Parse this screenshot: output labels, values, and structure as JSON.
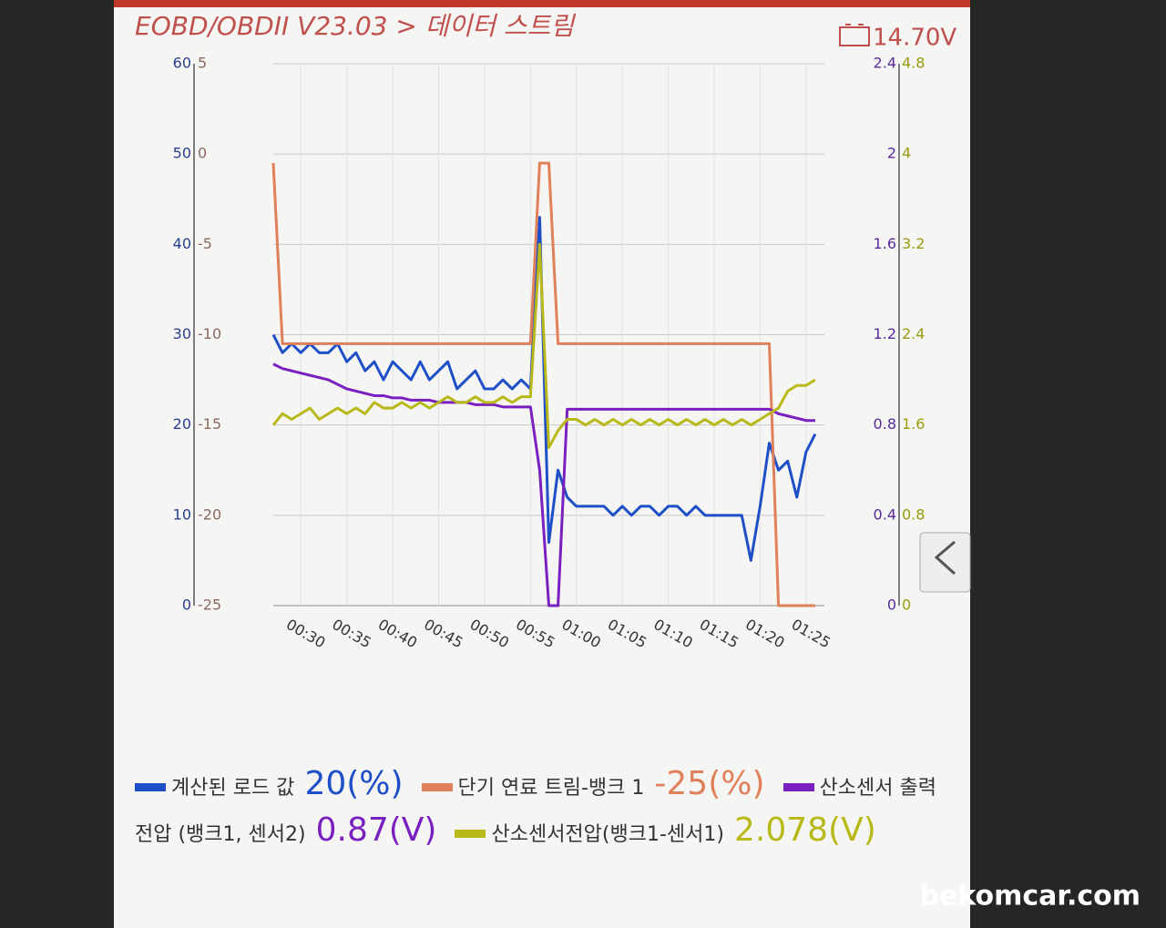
{
  "header": {
    "title": "EOBD/OBDII V23.03 > 데이터 스트림",
    "battery": "14.70V"
  },
  "chart_data": {
    "type": "line",
    "x": [
      27,
      28,
      29,
      30,
      31,
      32,
      33,
      34,
      35,
      36,
      37,
      38,
      39,
      40,
      41,
      42,
      43,
      44,
      45,
      46,
      47,
      48,
      49,
      50,
      51,
      52,
      53,
      54,
      55,
      56,
      57,
      58,
      59,
      60,
      61,
      62,
      63,
      64,
      65,
      66,
      67,
      68,
      69,
      70,
      71,
      72,
      73,
      74,
      75,
      76,
      77,
      78,
      79,
      80,
      81,
      82,
      83,
      84,
      85,
      86
    ],
    "xlim": [
      27,
      87
    ],
    "xticks": [
      {
        "value": 30,
        "label": "00:30"
      },
      {
        "value": 35,
        "label": "00:35"
      },
      {
        "value": 40,
        "label": "00:40"
      },
      {
        "value": 45,
        "label": "00:45"
      },
      {
        "value": 50,
        "label": "00:50"
      },
      {
        "value": 55,
        "label": "00:55"
      },
      {
        "value": 60,
        "label": "01:00"
      },
      {
        "value": 65,
        "label": "01:05"
      },
      {
        "value": 70,
        "label": "01:10"
      },
      {
        "value": 75,
        "label": "01:15"
      },
      {
        "value": 80,
        "label": "01:20"
      },
      {
        "value": 85,
        "label": "01:25"
      }
    ],
    "ylim": [
      0,
      60
    ],
    "yticks": [
      0,
      10,
      20,
      30,
      40,
      50,
      60
    ],
    "y2lim": [
      -25,
      5
    ],
    "y2ticks": [
      -25,
      -20,
      -15,
      -10,
      -5,
      0,
      5
    ],
    "y3lim": [
      0,
      2.4
    ],
    "y3ticks": [
      0,
      0.4,
      0.8,
      1.2,
      1.6,
      2,
      2.4
    ],
    "y4lim": [
      0,
      4.8
    ],
    "y4ticks": [
      0,
      0.8,
      1.6,
      2.4,
      3.2,
      4,
      4.8
    ],
    "grid": true,
    "series": [
      {
        "name": "계산된 로드 값",
        "reading": "20(%)",
        "color": "#1f4fc8",
        "axis": "y",
        "values": [
          30,
          28,
          29,
          28,
          29,
          28,
          28,
          29,
          27,
          28,
          26,
          27,
          25,
          27,
          26,
          25,
          27,
          25,
          26,
          27,
          24,
          25,
          26,
          24,
          24,
          25,
          24,
          25,
          24,
          43,
          7,
          15,
          12,
          11,
          11,
          11,
          11,
          10,
          11,
          10,
          11,
          11,
          10,
          11,
          11,
          10,
          11,
          10,
          10,
          10,
          10,
          10,
          5,
          11,
          18,
          15,
          16,
          12,
          17,
          19
        ]
      },
      {
        "name": "단기 연료 트림-뱅크 1",
        "reading": "-25(%)",
        "color": "#e0805a",
        "axis": "y2",
        "values": [
          -0.5,
          -10.5,
          -10.5,
          -10.5,
          -10.5,
          -10.5,
          -10.5,
          -10.5,
          -10.5,
          -10.5,
          -10.5,
          -10.5,
          -10.5,
          -10.5,
          -10.5,
          -10.5,
          -10.5,
          -10.5,
          -10.5,
          -10.5,
          -10.5,
          -10.5,
          -10.5,
          -10.5,
          -10.5,
          -10.5,
          -10.5,
          -10.5,
          -10.5,
          -0.5,
          -0.5,
          -10.5,
          -10.5,
          -10.5,
          -10.5,
          -10.5,
          -10.5,
          -10.5,
          -10.5,
          -10.5,
          -10.5,
          -10.5,
          -10.5,
          -10.5,
          -10.5,
          -10.5,
          -10.5,
          -10.5,
          -10.5,
          -10.5,
          -10.5,
          -10.5,
          -10.5,
          -10.5,
          -10.5,
          -25,
          -25,
          -25,
          -25,
          -25
        ]
      },
      {
        "name": "산소센서 출력전압 (뱅크1, 센서2)",
        "reading": "0.87(V)",
        "color": "#7a1fc0",
        "axis": "y3",
        "values": [
          1.07,
          1.05,
          1.04,
          1.03,
          1.02,
          1.01,
          1.0,
          0.98,
          0.96,
          0.95,
          0.94,
          0.93,
          0.93,
          0.92,
          0.92,
          0.91,
          0.91,
          0.91,
          0.9,
          0.9,
          0.9,
          0.9,
          0.89,
          0.89,
          0.89,
          0.88,
          0.88,
          0.88,
          0.88,
          0.6,
          0,
          0,
          0.87,
          0.87,
          0.87,
          0.87,
          0.87,
          0.87,
          0.87,
          0.87,
          0.87,
          0.87,
          0.87,
          0.87,
          0.87,
          0.87,
          0.87,
          0.87,
          0.87,
          0.87,
          0.87,
          0.87,
          0.87,
          0.87,
          0.87,
          0.85,
          0.84,
          0.83,
          0.82,
          0.82
        ]
      },
      {
        "name": "산소센서전압(뱅크1-센서1)",
        "reading": "2.078(V)",
        "color": "#b8b818",
        "axis": "y4",
        "values": [
          1.6,
          1.7,
          1.65,
          1.7,
          1.75,
          1.65,
          1.7,
          1.75,
          1.7,
          1.75,
          1.7,
          1.8,
          1.75,
          1.75,
          1.8,
          1.75,
          1.8,
          1.75,
          1.8,
          1.85,
          1.8,
          1.8,
          1.85,
          1.8,
          1.8,
          1.85,
          1.8,
          1.85,
          1.85,
          3.2,
          1.4,
          1.55,
          1.65,
          1.65,
          1.6,
          1.65,
          1.6,
          1.65,
          1.6,
          1.65,
          1.6,
          1.65,
          1.6,
          1.65,
          1.6,
          1.65,
          1.6,
          1.65,
          1.6,
          1.65,
          1.6,
          1.65,
          1.6,
          1.65,
          1.7,
          1.75,
          1.9,
          1.95,
          1.95,
          2.0
        ]
      }
    ]
  },
  "watermark": "bekomcar.com"
}
